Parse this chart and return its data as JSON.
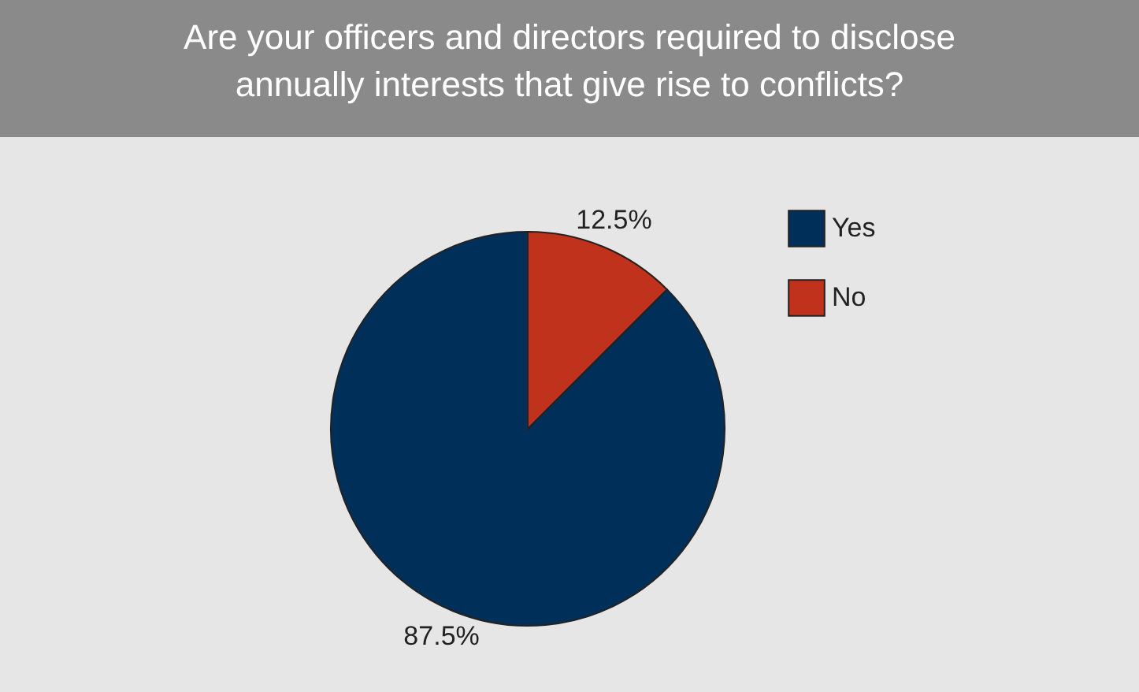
{
  "chart_data": {
    "type": "pie",
    "title": "Are your officers and directors required to disclose annually interests that give rise to conflicts?",
    "categories": [
      "Yes",
      "No"
    ],
    "values": [
      87.5,
      12.5
    ],
    "colors": [
      "#00305a",
      "#c0321b"
    ],
    "value_labels": [
      "87.5%",
      "12.5%"
    ],
    "legend": "top right"
  }
}
